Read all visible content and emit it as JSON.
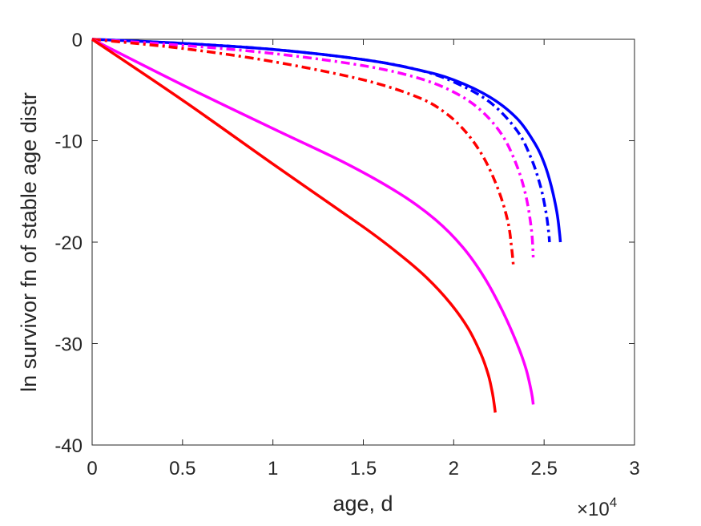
{
  "chart_data": {
    "type": "line",
    "xlabel": "age, d",
    "ylabel": "ln survivor fn of stable age distr",
    "x_exponent_label": "×10",
    "x_exponent_power": "4",
    "xlim": [
      0,
      30000
    ],
    "ylim": [
      -40,
      0
    ],
    "x_ticks": [
      0,
      5000,
      10000,
      15000,
      20000,
      25000,
      30000
    ],
    "x_tick_labels": [
      "0",
      "0.5",
      "1",
      "1.5",
      "2",
      "2.5",
      "3"
    ],
    "y_ticks": [
      0,
      -10,
      -20,
      -30,
      -40
    ],
    "y_tick_labels": [
      "0",
      "-10",
      "-20",
      "-30",
      "-40"
    ],
    "grid": false,
    "series": [
      {
        "color": "#0000ff",
        "style": "solid",
        "x": [
          0,
          5000,
          10000,
          15000,
          18000,
          20000,
          22000,
          23500,
          24500,
          25000,
          25400,
          25700,
          25850,
          25900
        ],
        "y": [
          0,
          -0.4,
          -1.0,
          -2.0,
          -3.0,
          -4.0,
          -5.7,
          -7.8,
          -10.3,
          -12.2,
          -14.5,
          -17.0,
          -19.0,
          -20.0
        ]
      },
      {
        "color": "#0000ff",
        "style": "dashdot",
        "x": [
          0,
          5000,
          10000,
          15000,
          18000,
          20000,
          22000,
          23500,
          24300,
          24800,
          25100,
          25250,
          25300
        ],
        "y": [
          0,
          -0.4,
          -1.0,
          -2.0,
          -3.0,
          -4.2,
          -6.2,
          -9.0,
          -11.8,
          -14.5,
          -17.0,
          -19.0,
          -20.0
        ]
      },
      {
        "color": "#ff00ff",
        "style": "dashdot",
        "x": [
          0,
          5000,
          10000,
          15000,
          18000,
          20000,
          21500,
          22700,
          23500,
          24000,
          24300,
          24400
        ],
        "y": [
          0,
          -0.6,
          -1.4,
          -2.6,
          -3.8,
          -5.2,
          -7.0,
          -9.5,
          -12.5,
          -15.5,
          -18.8,
          -21.5
        ]
      },
      {
        "color": "#ff0000",
        "style": "dashdot",
        "x": [
          0,
          5000,
          10000,
          15000,
          18000,
          19500,
          20700,
          21700,
          22500,
          23000,
          23200,
          23300
        ],
        "y": [
          0,
          -0.9,
          -2.2,
          -4.0,
          -5.7,
          -7.2,
          -9.2,
          -11.8,
          -15.0,
          -18.0,
          -20.5,
          -22.3
        ]
      },
      {
        "color": "#ff00ff",
        "style": "solid",
        "x": [
          0,
          5000,
          10000,
          14000,
          17000,
          19000,
          20500,
          21700,
          22700,
          23500,
          24000,
          24300,
          24400
        ],
        "y": [
          0,
          -4.5,
          -8.8,
          -12.2,
          -15.2,
          -17.8,
          -20.5,
          -23.5,
          -26.8,
          -30.0,
          -32.5,
          -34.8,
          -36.0
        ]
      },
      {
        "color": "#ff0000",
        "style": "solid",
        "x": [
          0,
          5000,
          10000,
          15000,
          17000,
          18500,
          19800,
          20800,
          21500,
          21900,
          22100,
          22200,
          22300
        ],
        "y": [
          0,
          -6.0,
          -12.3,
          -18.5,
          -21.2,
          -23.5,
          -26.0,
          -28.5,
          -31.0,
          -33.0,
          -34.5,
          -35.5,
          -36.8
        ]
      }
    ]
  }
}
